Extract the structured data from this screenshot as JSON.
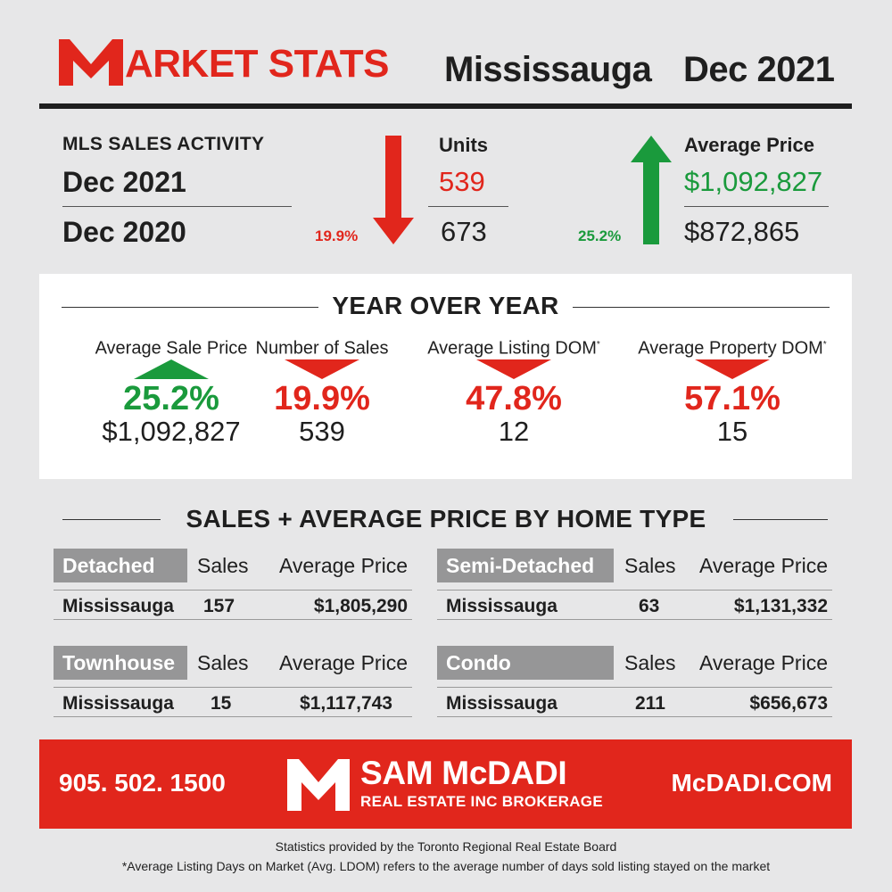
{
  "header": {
    "brand_rest": "ARKET STATS",
    "city": "Mississauga",
    "date": "Dec 2021"
  },
  "mls": {
    "title": "MLS SALES ACTIVITY",
    "current_label": "Dec 2021",
    "previous_label": "Dec 2020",
    "units": {
      "heading": "Units",
      "current": "539",
      "previous": "673",
      "change": "19.9%",
      "direction": "down"
    },
    "price": {
      "heading": "Average Price",
      "current": "$1,092,827",
      "previous": "$872,865",
      "change": "25.2%",
      "direction": "up"
    }
  },
  "yoy": {
    "title": "YEAR OVER YEAR",
    "items": [
      {
        "label": "Average Sale Price",
        "marker": "",
        "pct": "25.2%",
        "value": "$1,092,827",
        "direction": "up"
      },
      {
        "label": "Number of Sales",
        "marker": "",
        "pct": "19.9%",
        "value": "539",
        "direction": "down"
      },
      {
        "label": "Average Listing DOM",
        "marker": "*",
        "pct": "47.8%",
        "value": "12",
        "direction": "down"
      },
      {
        "label": "Average Property DOM",
        "marker": "*",
        "pct": "57.1%",
        "value": "15",
        "direction": "down"
      }
    ]
  },
  "home_types": {
    "title": "SALES + AVERAGE PRICE BY HOME TYPE",
    "sales_header": "Sales",
    "price_header": "Average Price",
    "tables": [
      {
        "type": "Detached",
        "area": "Mississauga",
        "sales": "157",
        "avg_price": "$1,805,290"
      },
      {
        "type": "Semi-Detached",
        "area": "Mississauga",
        "sales": "63",
        "avg_price": "$1,131,332"
      },
      {
        "type": "Townhouse",
        "area": "Mississauga",
        "sales": "15",
        "avg_price": "$1,117,743"
      },
      {
        "type": "Condo",
        "area": "Mississauga",
        "sales": "211",
        "avg_price": "$656,673"
      }
    ]
  },
  "footer": {
    "phone": "905. 502. 1500",
    "brand_name": "SAM McDADI",
    "brand_sub": "REAL ESTATE INC BROKERAGE",
    "website": "McDADI.COM"
  },
  "notes": {
    "source": "Statistics provided by the Toronto Regional Real Estate Board",
    "ldom": "*Average Listing Days on Market (Avg. LDOM) refers to the average number of days sold listing stayed on the market"
  },
  "colors": {
    "brand_red": "#e1261c",
    "up_green": "#1a9a3c",
    "tag_gray": "#969697",
    "background": "#e7e7e8"
  },
  "icons": [
    "m-logo-icon",
    "arrow-down-icon",
    "arrow-up-icon",
    "triangle-up-icon",
    "triangle-down-icon"
  ]
}
